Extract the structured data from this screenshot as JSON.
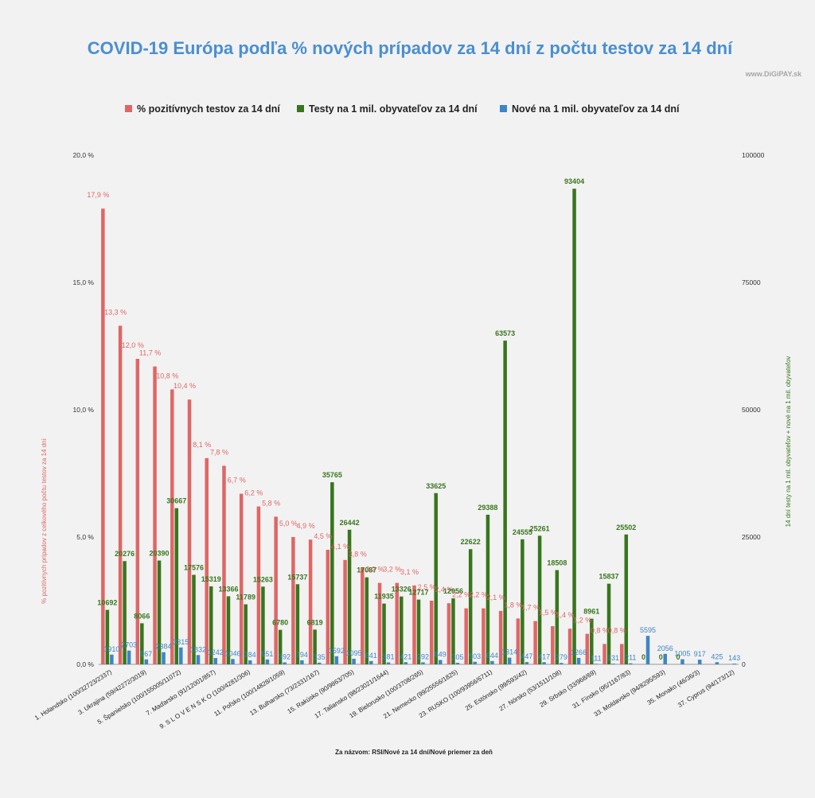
{
  "chart_data": {
    "type": "bar",
    "title": "COVID-19 Európa  podľa % nových prípadov za 14 dní z počtu testov za 14 dní",
    "source": "www.DiGiPAY.sk",
    "xlabel": "Za názvom: RSI/Nové za 14 dní/Nové priemer za deň",
    "ylabel_left": "% pozitívnych prípadov z celkového počtu testov za 14 dní",
    "ylabel_right": "14 dní testy na  1 mil. obyvateľov + nové  na 1 mil. obyvateľov",
    "ylim_left": [
      0,
      20
    ],
    "ylim_right": [
      0,
      100000
    ],
    "yticks_left": [
      "0,0 %",
      "5,0 %",
      "10,0 %",
      "15,0 %",
      "20,0 %"
    ],
    "yticks_right": [
      "0",
      "25000",
      "50000",
      "75000",
      "100000"
    ],
    "legend_position": "top",
    "category_labels_visible": [
      "1. Holandsko (100/32723/2337)",
      "3. Ukrajina (59/42272/3019)",
      "5. Španielsko (100/155005/11072)",
      "7. Maďarsko (91/12001/857)",
      "9.  S L O V E N S K O (100/4281/306)",
      "11. Poľsko (100/14828/1059)",
      "13. Bulharsko (73/2331/167)",
      "15. Rakúsko (90/9863/705)",
      "17. Taliansko (98/23021/1644)",
      "19. Bielorusko (100/3708/265)",
      "21. Nemecko (99/25556/1825)",
      "23. RUSKO (100/93956/6711)",
      "25. Estónsko (99/593/42)",
      "27. Nórsko (53/1511/108)",
      "29. Srbsko (33/968/69)",
      "31. Fínsko (95/1167/83)",
      "33. Moldavsko (94/8295/593)",
      "35. Monako (46/36/3)",
      "37. Cyprus (94/173/12)"
    ],
    "series": [
      {
        "name": "% pozitívnych testov za 14 dní",
        "color": "#e06666",
        "axis": "left",
        "values": [
          17.9,
          13.3,
          12.0,
          11.7,
          10.8,
          10.4,
          8.1,
          7.8,
          6.7,
          6.2,
          5.8,
          5.0,
          4.9,
          4.5,
          4.1,
          3.8,
          3.2,
          3.2,
          3.1,
          2.5,
          2.4,
          2.2,
          2.2,
          2.1,
          1.8,
          1.7,
          1.5,
          1.4,
          1.2,
          0.8,
          0.8,
          0.0,
          0.0,
          0.0,
          0.0,
          0.0,
          0.0
        ],
        "labels": [
          "17,9 %",
          "13,3 %",
          "12,0 %",
          "11,7 %",
          "10,8 %",
          "10,4 %",
          "8,1 %",
          "7,8 %",
          "6,7 %",
          "6,2 %",
          "5,8 %",
          "5,0 %",
          "4,9 %",
          "4,5 %",
          "4,1 %",
          "3,8 %",
          "3,2 %",
          "3,2 %",
          "3,1 %",
          "2,5 %",
          "2,4 %",
          "2,2 %",
          "2,2 %",
          "2,1 %",
          "1,8 %",
          "1,7 %",
          "1,5 %",
          "1,4 %",
          "1,2 %",
          "0,8 %",
          "0,8 %",
          "",
          "",
          "",
          "",
          "",
          ""
        ]
      },
      {
        "name": "Testy na 1 mil. obyvateľov za 14 dní",
        "color": "#38761d",
        "axis": "right",
        "values": [
          10692,
          20276,
          8066,
          20390,
          30667,
          17576,
          15319,
          13366,
          11789,
          15263,
          6780,
          15737,
          6819,
          35765,
          26442,
          17087,
          11935,
          13326,
          12717,
          33625,
          12956,
          22622,
          29388,
          63573,
          24555,
          25261,
          18508,
          93404,
          8961,
          15837,
          25502,
          0,
          0,
          0,
          0,
          0,
          0
        ],
        "labels": [
          "10692",
          "20276",
          "8066",
          "20390",
          "30667",
          "17576",
          "15319",
          "13366",
          "11789",
          "15263",
          "6780",
          "15737",
          "6819",
          "35765",
          "26442",
          "17087",
          "11935",
          "13326",
          "12717",
          "33625",
          "12956",
          "22622",
          "29388",
          "63573",
          "24555",
          "25261",
          "18508",
          "93404",
          "8961",
          "15837",
          "25502",
          "0",
          "0",
          "0",
          "",
          "",
          ""
        ]
      },
      {
        "name": "Nové na 1 mil. obyvateľov za 14 dní",
        "color": "#3d85c6",
        "axis": "right",
        "values": [
          1910,
          2703,
          967,
          2384,
          3315,
          1832,
          1242,
          1046,
          784,
          951,
          392,
          794,
          335,
          1592,
          1095,
          641,
          381,
          421,
          392,
          849,
          305,
          503,
          644,
          1314,
          447,
          417,
          279,
          1266,
          111,
          131,
          211,
          5595,
          2056,
          1005,
          917,
          425,
          143
        ],
        "labels": [
          "1910",
          "2703",
          "967",
          "2384",
          "3315",
          "1832",
          "1242",
          "1046",
          "784",
          "951",
          "392",
          "794",
          "335",
          "1592",
          "1095",
          "641",
          "381",
          "421",
          "392",
          "849",
          "305",
          "503",
          "644",
          "1314",
          "447",
          "417",
          "279",
          "1266",
          "111",
          "131",
          "211",
          "5595",
          "2056",
          "1005",
          "917",
          "425",
          "143"
        ]
      }
    ]
  }
}
